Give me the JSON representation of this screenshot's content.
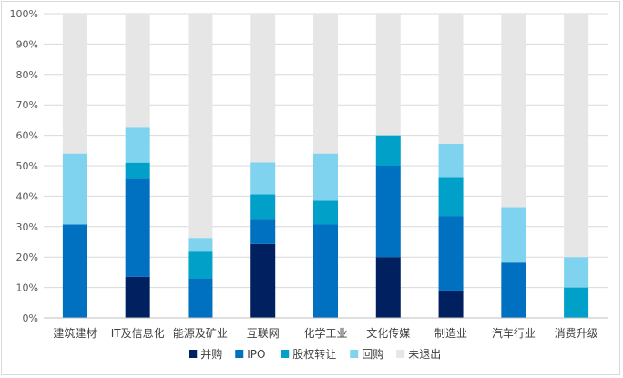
{
  "chart_data": {
    "type": "bar",
    "stacked": true,
    "title": "",
    "xlabel": "",
    "ylabel": "",
    "ylim": [
      0,
      100
    ],
    "yticks": [
      0,
      10,
      20,
      30,
      40,
      50,
      60,
      70,
      80,
      90,
      100
    ],
    "ytick_suffix": "%",
    "grid": true,
    "legend_position": "bottom",
    "categories": [
      "建筑建材",
      "IT及信息化",
      "能源及矿业",
      "互联网",
      "化学工业",
      "文化传媒",
      "制造业",
      "汽车行业",
      "消费升级"
    ],
    "series": [
      {
        "name": "并购",
        "color": "#002060",
        "values": [
          0,
          13.5,
          0,
          24.3,
          0,
          20,
          9,
          0,
          0
        ]
      },
      {
        "name": "IPO",
        "color": "#0070C0",
        "values": [
          30.7,
          32.5,
          13,
          8.2,
          30.7,
          30,
          24.5,
          18.2,
          0
        ]
      },
      {
        "name": "股权转让",
        "color": "#00A0C8",
        "values": [
          0,
          5,
          8.8,
          8.1,
          7.8,
          10,
          12.8,
          0,
          10
        ]
      },
      {
        "name": "回购",
        "color": "#7FD3EF",
        "values": [
          23.3,
          11.8,
          4.5,
          10.5,
          15.5,
          0,
          10.9,
          18.2,
          10
        ]
      },
      {
        "name": "未退出",
        "color": "#E7E6E6",
        "values": [
          46,
          37.2,
          73.7,
          48.9,
          46,
          40,
          42.8,
          63.6,
          80
        ]
      }
    ]
  }
}
